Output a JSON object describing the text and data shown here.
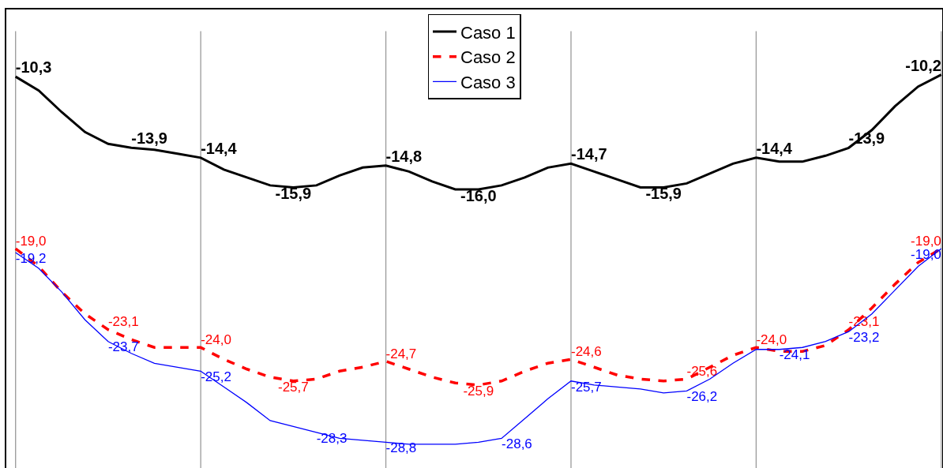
{
  "chart_data": {
    "type": "line",
    "categories": [
      null,
      null,
      null,
      null,
      null,
      null,
      null,
      null,
      null,
      null,
      null,
      null,
      null,
      null,
      null,
      null,
      null,
      null,
      null,
      null,
      null,
      null,
      null,
      null,
      null,
      null,
      null,
      null,
      null,
      null,
      null,
      null,
      null,
      null,
      null,
      null,
      null,
      null,
      null,
      null,
      null
    ],
    "series": [
      {
        "name": "Caso 1",
        "color": "#000000",
        "line_style": "solid",
        "values": [
          -10.3,
          -11.0,
          -12.1,
          -13.1,
          -13.7,
          -13.9,
          -14.0,
          -14.2,
          -14.4,
          -15.0,
          -15.4,
          -15.8,
          -15.9,
          -15.8,
          -15.3,
          -14.9,
          -14.8,
          -15.1,
          -15.6,
          -16.0,
          -16.0,
          -15.8,
          -15.4,
          -14.9,
          -14.7,
          -15.1,
          -15.5,
          -15.9,
          -15.9,
          -15.7,
          -15.2,
          -14.7,
          -14.4,
          -14.6,
          -14.6,
          -14.3,
          -13.9,
          -13.0,
          -11.8,
          -10.8,
          -10.2
        ],
        "value_labels": [
          "-10,3",
          null,
          null,
          null,
          null,
          "-13,9",
          null,
          null,
          "-14,4",
          null,
          null,
          null,
          "-15,9",
          null,
          null,
          null,
          "-14,8",
          null,
          null,
          null,
          "-16,0",
          null,
          null,
          null,
          "-14,7",
          null,
          null,
          null,
          "-15,9",
          null,
          null,
          null,
          "-14,4",
          null,
          null,
          null,
          "-13,9",
          null,
          null,
          null,
          "-10,2"
        ]
      },
      {
        "name": "Caso 2",
        "color": "#ff0000",
        "line_style": "dashed",
        "values": [
          -19.0,
          -19.9,
          -21.2,
          -22.3,
          -23.1,
          -23.6,
          -24.0,
          -24.0,
          -24.0,
          -24.6,
          -25.1,
          -25.5,
          -25.7,
          -25.6,
          -25.2,
          -25.0,
          -24.7,
          -25.1,
          -25.5,
          -25.8,
          -25.9,
          -25.7,
          -25.2,
          -24.8,
          -24.6,
          -25.0,
          -25.4,
          -25.6,
          -25.7,
          -25.6,
          -25.0,
          -24.4,
          -24.0,
          -24.2,
          -24.2,
          -23.9,
          -23.1,
          -22.0,
          -20.8,
          -19.7,
          -19.0
        ],
        "value_labels": [
          "-19,0",
          null,
          null,
          null,
          "-23,1",
          null,
          null,
          null,
          "-24,0",
          null,
          null,
          null,
          "-25,7",
          null,
          null,
          null,
          "-24,7",
          null,
          null,
          null,
          "-25,9",
          null,
          null,
          null,
          "-24,6",
          null,
          null,
          null,
          null,
          "-25,6",
          null,
          null,
          "-24,0",
          null,
          null,
          null,
          "-23,1",
          null,
          null,
          null,
          "-19,0"
        ]
      },
      {
        "name": "Caso 3",
        "color": "#0000ff",
        "line_style": "solid",
        "values": [
          -19.2,
          -20.0,
          -21.2,
          -22.6,
          -23.7,
          -24.3,
          -24.8,
          -25.0,
          -25.2,
          -26.0,
          -26.8,
          -27.7,
          -28.0,
          -28.3,
          -28.6,
          -28.7,
          -28.8,
          -28.9,
          -28.9,
          -28.9,
          -28.8,
          -28.6,
          -27.6,
          -26.6,
          -25.7,
          -25.9,
          -26.0,
          -26.1,
          -26.3,
          -26.2,
          -25.6,
          -24.8,
          -24.1,
          -24.1,
          -24.0,
          -23.7,
          -23.2,
          -22.3,
          -21.1,
          -19.9,
          -19.0
        ],
        "value_labels": [
          "-19,2",
          null,
          null,
          null,
          "-23,7",
          null,
          null,
          null,
          "-25,2",
          null,
          null,
          null,
          null,
          "-28,3",
          null,
          null,
          "-28,8",
          null,
          null,
          null,
          null,
          "-28,6",
          null,
          null,
          "-25,7",
          null,
          null,
          null,
          null,
          "-26,2",
          null,
          null,
          null,
          "-24,1",
          null,
          null,
          "-23,2",
          null,
          null,
          null,
          "-19,0"
        ]
      }
    ],
    "grid": "x",
    "ylim": [
      -30.1,
      -6.9
    ],
    "legend": "top",
    "marker": "none"
  }
}
